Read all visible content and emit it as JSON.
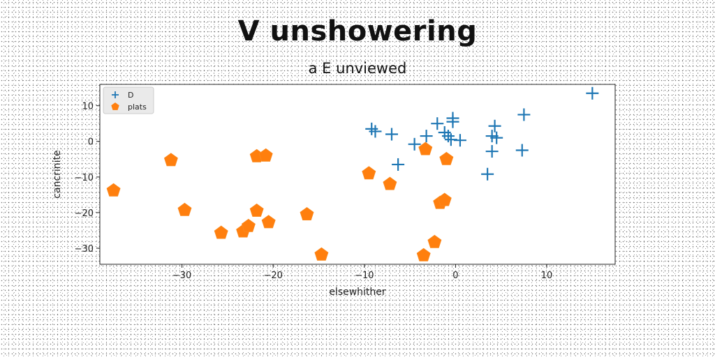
{
  "chart_data": {
    "type": "scatter",
    "title": "V unshowering",
    "subtitle": "a E unviewed",
    "xlabel": "elsewhither",
    "ylabel": "cancrinite",
    "xlim": [
      -39,
      17.5
    ],
    "ylim": [
      -34.5,
      16
    ],
    "xticks": [
      -30,
      -20,
      -10,
      0,
      10
    ],
    "yticks": [
      -30,
      -20,
      -10,
      0,
      10
    ],
    "xtick_labels": [
      "−30",
      "−20",
      "−10",
      "0",
      "10"
    ],
    "ytick_labels": [
      "−30",
      "−20",
      "−10",
      "0",
      "10"
    ],
    "grid": false,
    "legend_position": "top-left",
    "series": [
      {
        "name": "D",
        "marker": "plus",
        "color": "#1f77b4",
        "points": [
          [
            15.0,
            13.5
          ],
          [
            7.5,
            7.5
          ],
          [
            -0.3,
            6.5
          ],
          [
            -0.3,
            5.5
          ],
          [
            -2.0,
            5.0
          ],
          [
            4.3,
            4.3
          ],
          [
            -9.2,
            3.5
          ],
          [
            -8.8,
            2.8
          ],
          [
            -7.0,
            2.0
          ],
          [
            -1.2,
            2.5
          ],
          [
            -3.2,
            1.5
          ],
          [
            -0.8,
            1.5
          ],
          [
            4.0,
            1.5
          ],
          [
            4.5,
            1.0
          ],
          [
            -0.5,
            0.5
          ],
          [
            0.5,
            0.3
          ],
          [
            -4.5,
            -0.8
          ],
          [
            4.0,
            -2.8
          ],
          [
            7.3,
            -2.5
          ],
          [
            -6.3,
            -6.5
          ],
          [
            3.5,
            -9.2
          ]
        ]
      },
      {
        "name": "plats",
        "marker": "pentagon",
        "color": "#ff7f0e",
        "points": [
          [
            -37.5,
            -13.8
          ],
          [
            -31.2,
            -5.3
          ],
          [
            -29.7,
            -19.3
          ],
          [
            -25.7,
            -25.7
          ],
          [
            -23.3,
            -25.3
          ],
          [
            -22.7,
            -23.8
          ],
          [
            -21.8,
            -4.2
          ],
          [
            -21.8,
            -19.5
          ],
          [
            -20.8,
            -4.0
          ],
          [
            -20.5,
            -22.7
          ],
          [
            -16.3,
            -20.5
          ],
          [
            -14.7,
            -31.8
          ],
          [
            -9.5,
            -9.0
          ],
          [
            -7.2,
            -12.0
          ],
          [
            -3.3,
            -2.2
          ],
          [
            -3.5,
            -32.0
          ],
          [
            -2.3,
            -28.3
          ],
          [
            -1.0,
            -5.0
          ],
          [
            -1.7,
            -17.3
          ],
          [
            -1.2,
            -16.5
          ]
        ]
      }
    ]
  }
}
